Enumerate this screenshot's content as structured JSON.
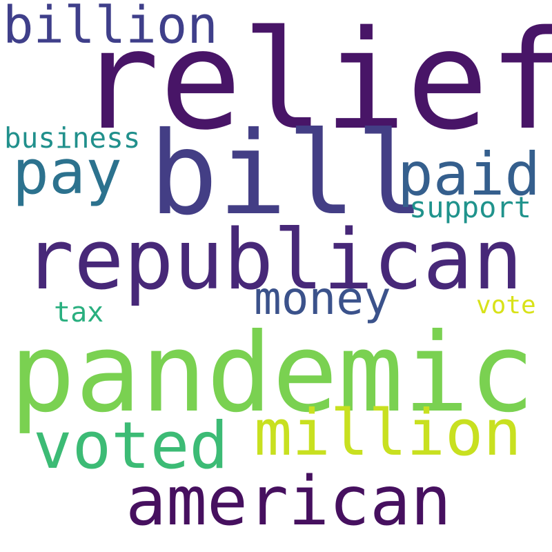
{
  "wordcloud": {
    "background": "#ffffff",
    "words": {
      "relief": {
        "text": "relief",
        "color": "#481567"
      },
      "billion": {
        "text": "billion",
        "color": "#3f3f8a"
      },
      "bill": {
        "text": "bill",
        "color": "#433e85"
      },
      "business": {
        "text": "business",
        "color": "#21908c"
      },
      "pay": {
        "text": "pay",
        "color": "#2c728e"
      },
      "paid": {
        "text": "paid",
        "color": "#355f8d"
      },
      "support": {
        "text": "support",
        "color": "#20938c"
      },
      "republican": {
        "text": "republican",
        "color": "#472878"
      },
      "money": {
        "text": "money",
        "color": "#3b528b"
      },
      "tax": {
        "text": "tax",
        "color": "#29af7f"
      },
      "vote": {
        "text": "vote",
        "color": "#d8e219"
      },
      "pandemic": {
        "text": "pandemic",
        "color": "#7ad151"
      },
      "million": {
        "text": "million",
        "color": "#c8e020"
      },
      "voted": {
        "text": "voted",
        "color": "#3cbb75"
      },
      "american": {
        "text": "american",
        "color": "#46105f"
      }
    }
  }
}
